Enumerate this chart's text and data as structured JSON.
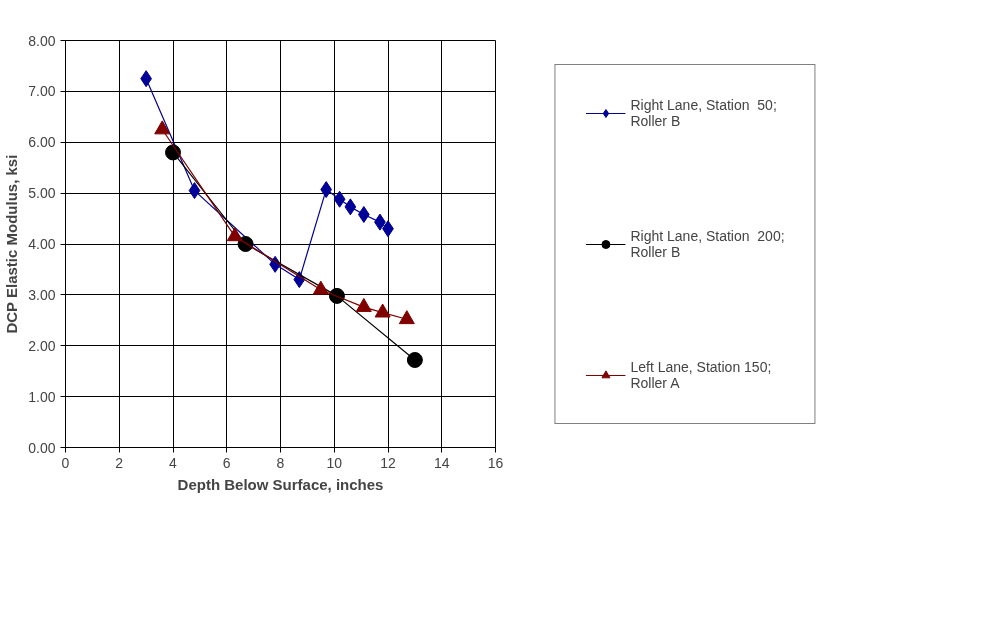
{
  "chart_data": {
    "type": "line",
    "xlabel": "Depth Below Surface, inches",
    "ylabel": "DCP Elastic Modulus, ksi",
    "xlim": [
      0,
      16
    ],
    "xticks": [
      0,
      2,
      4,
      6,
      8,
      10,
      12,
      14,
      16
    ],
    "ylim": [
      0,
      8
    ],
    "yticks": [
      {
        "value": 0,
        "label": "0.00"
      },
      {
        "value": 1,
        "label": "1.00"
      },
      {
        "value": 2,
        "label": "2.00"
      },
      {
        "value": 3,
        "label": "3.00"
      },
      {
        "value": 4,
        "label": "4.00"
      },
      {
        "value": 5,
        "label": "5.00"
      },
      {
        "value": 6,
        "label": "6.00"
      },
      {
        "value": 7,
        "label": "7.00"
      },
      {
        "value": 8,
        "label": "8.00"
      }
    ],
    "grid": true,
    "legend": "right",
    "line_style": "solid",
    "series": [
      {
        "name": "Right Lane, Station  50; Roller B",
        "color": "#000099",
        "marker": "diamond",
        "x": [
          3.0,
          4.8,
          7.8,
          8.7,
          9.7,
          10.2,
          10.6,
          11.1,
          11.7,
          12.0
        ],
        "values": [
          7.25,
          5.05,
          3.6,
          3.3,
          5.07,
          4.88,
          4.73,
          4.58,
          4.43,
          4.3
        ]
      },
      {
        "name": "Right Lane, Station  200; Roller B",
        "color": "#000000",
        "marker": "circle",
        "x": [
          4.0,
          6.7,
          10.1,
          13.0
        ],
        "values": [
          5.8,
          4.0,
          2.98,
          1.72
        ]
      },
      {
        "name": "Left Lane, Station 150; Roller A",
        "color": "#800000",
        "marker": "triangle",
        "x": [
          3.6,
          6.3,
          9.5,
          11.1,
          11.8,
          12.7
        ],
        "values": [
          6.25,
          4.15,
          3.1,
          2.76,
          2.65,
          2.52
        ]
      }
    ]
  }
}
